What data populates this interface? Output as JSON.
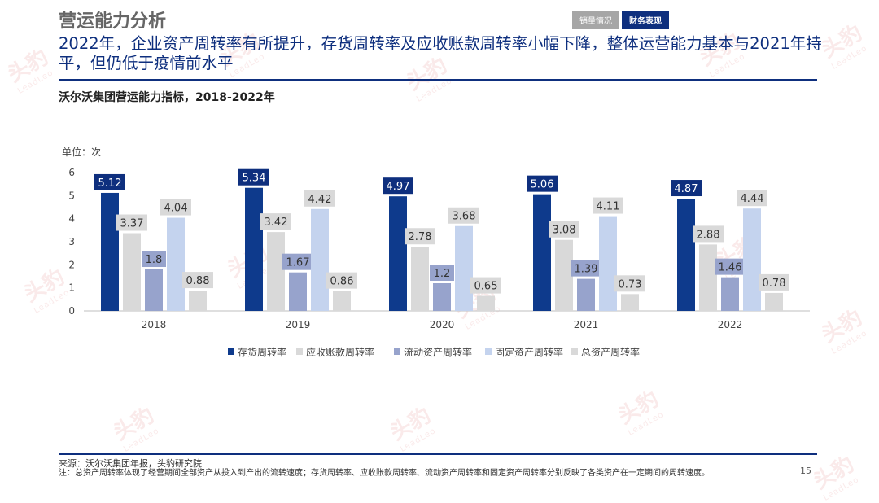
{
  "header": {
    "section_title": "营运能力分析",
    "tabs": [
      {
        "label": "销量情况",
        "active": false
      },
      {
        "label": "财务表现",
        "active": true
      }
    ],
    "headline": "2022年，企业资产周转率有所提升，存货周转率及应收账款周转率小幅下降，整体运营能力基本与2021年持平，但仍低于疫情前水平"
  },
  "watermark": {
    "text": "头豹",
    "subtext": "LeadLeo"
  },
  "colors": {
    "brand": "#0e2f7e",
    "series": [
      "#0e3a8c",
      "#d9d9d9",
      "#97a3cc",
      "#c4d3ee",
      "#d9d9d9"
    ]
  },
  "chart_data": {
    "type": "bar",
    "title": "沃尔沃集团营运能力指标，2018-2022年",
    "unit_label": "单位：次",
    "categories": [
      "2018",
      "2019",
      "2020",
      "2021",
      "2022"
    ],
    "yticks": [
      "0",
      "1",
      "2",
      "3",
      "4",
      "5",
      "6"
    ],
    "ylim": [
      0,
      6
    ],
    "legend_position": "bottom",
    "grid": false,
    "series": [
      {
        "name": "存货周转率",
        "values": [
          5.12,
          5.34,
          4.97,
          5.06,
          4.87
        ],
        "labels": [
          "5.12",
          "5.34",
          "4.97",
          "5.06",
          "4.87"
        ]
      },
      {
        "name": "应收账款周转率",
        "values": [
          3.37,
          3.42,
          2.78,
          3.08,
          2.88
        ],
        "labels": [
          "3.37",
          "3.42",
          "2.78",
          "3.08",
          "2.88"
        ]
      },
      {
        "name": "流动资产周转率",
        "values": [
          1.8,
          1.67,
          1.2,
          1.39,
          1.46
        ],
        "labels": [
          "1.8",
          "1.67",
          "1.2",
          "1.39",
          "1.46"
        ]
      },
      {
        "name": "固定资产周转率",
        "values": [
          4.04,
          4.42,
          3.68,
          4.11,
          4.44
        ],
        "labels": [
          "4.04",
          "4.42",
          "3.68",
          "4.11",
          "4.44"
        ]
      },
      {
        "name": "总资产周转率",
        "values": [
          0.88,
          0.86,
          0.65,
          0.73,
          0.78
        ],
        "labels": [
          "0.88",
          "0.86",
          "0.65",
          "0.73",
          "0.78"
        ]
      }
    ]
  },
  "footer": {
    "source": "来源：沃尔沃集团年报，头豹研究院",
    "note": "注：总资产周转率体现了经营期间全部资产从投入到产出的流转速度；存货周转率、应收账款周转率、流动资产周转率和固定资产周转率分别反映了各类资产在一定期间的周转速度。",
    "page_number": "15"
  }
}
